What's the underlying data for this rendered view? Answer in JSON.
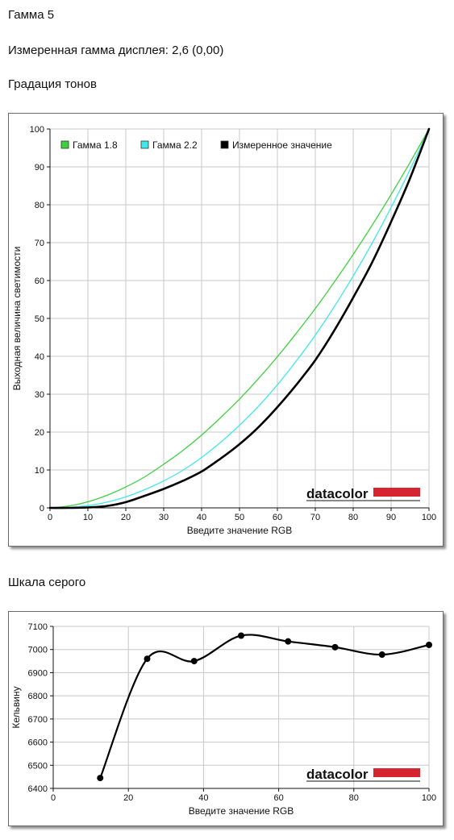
{
  "header": {
    "title": "Гамма 5",
    "measured": "Измеренная гамма дисплея: 2,6 (0,00)",
    "section_tones": "Градация тонов",
    "section_gray": "Шкала серого"
  },
  "logo": {
    "text": "datacolor",
    "bar_color": "#d62430"
  },
  "chart_data": [
    {
      "type": "line",
      "xlabel": "Введите значение RGB",
      "ylabel": "Выходная величина светимости",
      "xlim": [
        0,
        100
      ],
      "ylim": [
        0,
        100
      ],
      "x_ticks": [
        0,
        10,
        20,
        30,
        40,
        50,
        60,
        70,
        80,
        90,
        100
      ],
      "y_ticks": [
        0,
        10,
        20,
        30,
        40,
        50,
        60,
        70,
        80,
        90,
        100
      ],
      "grid": true,
      "legend_position": "top-left",
      "x": [
        0,
        5,
        10,
        15,
        20,
        25,
        30,
        35,
        40,
        45,
        50,
        55,
        60,
        65,
        70,
        75,
        80,
        85,
        90,
        95,
        100
      ],
      "series": [
        {
          "name": "Гамма 1.8",
          "color": "#3dd13d",
          "values": [
            0,
            0.5,
            1.6,
            3.3,
            5.5,
            8.2,
            11.5,
            15.1,
            19.2,
            23.8,
            28.7,
            34.1,
            39.9,
            46.1,
            52.6,
            59.6,
            66.9,
            74.6,
            82.7,
            91.2,
            100
          ]
        },
        {
          "name": "Гамма 2.2",
          "color": "#40e8e8",
          "values": [
            0,
            0.1,
            0.6,
            1.5,
            2.9,
            4.8,
            7.1,
            9.9,
            13.3,
            17.3,
            21.8,
            26.8,
            32.5,
            38.8,
            45.6,
            53.1,
            61.2,
            69.9,
            79.3,
            89.3,
            100
          ]
        },
        {
          "name": "Измеренное значение",
          "color": "#000000",
          "values": [
            0,
            0,
            0.1,
            0.5,
            1.5,
            3.2,
            5.0,
            7.1,
            9.6,
            13.0,
            16.8,
            21.3,
            26.6,
            32.5,
            39.0,
            46.8,
            55.5,
            64.8,
            75.5,
            87.0,
            100
          ]
        }
      ]
    },
    {
      "type": "line",
      "xlabel": "Введите значение RGB",
      "ylabel": "Кельвину",
      "xlim": [
        0,
        100
      ],
      "ylim": [
        6400,
        7100
      ],
      "x_ticks": [
        0,
        20,
        40,
        60,
        80,
        100
      ],
      "y_ticks": [
        6400,
        6500,
        6600,
        6700,
        6800,
        6900,
        7000,
        7100
      ],
      "grid": true,
      "series": [
        {
          "name": "",
          "color": "#000000",
          "x": [
            12.5,
            25,
            37.5,
            50,
            62.5,
            75,
            87.5,
            100
          ],
          "values": [
            6445,
            6960,
            6950,
            7060,
            7035,
            7010,
            6978,
            7020
          ]
        }
      ]
    }
  ]
}
